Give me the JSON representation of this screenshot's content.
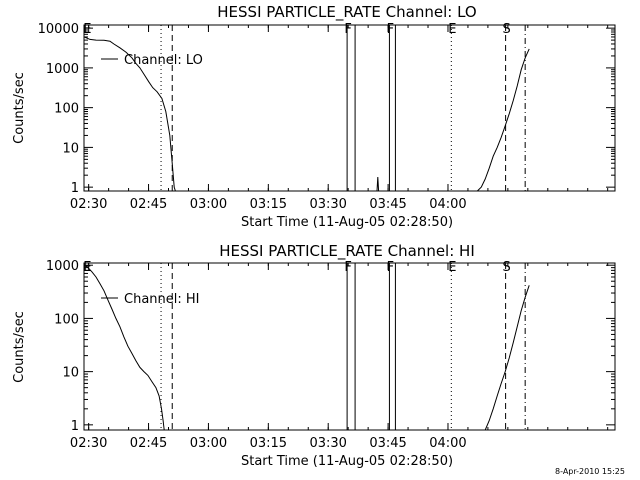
{
  "footer": {
    "date_stamp": "8-Apr-2010 15:25"
  },
  "chart_data": [
    {
      "type": "line",
      "title": "HESSI PARTICLE_RATE Channel: LO",
      "xlabel": "Start Time (11-Aug-05 02:28:50)",
      "ylabel": "Counts/sec",
      "yscale": "log",
      "xlim_minutes_after_0228_50": [
        0,
        133
      ],
      "ylim": [
        0.8,
        12000
      ],
      "x_tick_labels": [
        "02:30",
        "02:45",
        "03:00",
        "03:15",
        "03:30",
        "03:45",
        "04:00"
      ],
      "y_tick_labels": [
        "1",
        "10",
        "100",
        "1000",
        "10000"
      ],
      "legend": "Channel: LO",
      "legend_placement": "top-left",
      "markers": [
        {
          "label": "E",
          "x": 0.6,
          "style": "none"
        },
        {
          "label": "F",
          "x": 65.9,
          "style": "solid"
        },
        {
          "label": "",
          "x": 67.9,
          "style": "solid"
        },
        {
          "label": "F",
          "x": 76.5,
          "style": "solid"
        },
        {
          "label": "",
          "x": 78.0,
          "style": "solid"
        },
        {
          "label": "E",
          "x": 92.0,
          "style": "dotted"
        },
        {
          "label": "S",
          "x": 105.6,
          "style": "dashed"
        },
        {
          "label": "",
          "x": 110.5,
          "style": "dashdot"
        }
      ],
      "vlines": [
        {
          "x": 19.3,
          "style": "dotted"
        },
        {
          "x": 22.1,
          "style": "dashed"
        }
      ],
      "series": [
        {
          "name": "Channel: LO",
          "segments": [
            [
              [
                0.1,
                6000
              ],
              [
                1.5,
                5200
              ],
              [
                3,
                5000
              ],
              [
                5,
                4950
              ],
              [
                6.5,
                4700
              ],
              [
                7.5,
                4000
              ],
              [
                9,
                3200
              ],
              [
                10.5,
                2500
              ],
              [
                12,
                1800
              ],
              [
                13,
                1300
              ],
              [
                14,
                1000
              ],
              [
                15,
                700
              ],
              [
                16.2,
                450
              ],
              [
                17.2,
                320
              ],
              [
                18.3,
                250
              ],
              [
                19.5,
                170
              ],
              [
                20.5,
                80
              ],
              [
                21.5,
                20
              ],
              [
                22.1,
                4
              ],
              [
                22.6,
                1
              ],
              [
                22.9,
                0.8
              ]
            ],
            [
              [
                73.4,
                0.8
              ],
              [
                73.6,
                1.8
              ],
              [
                73.8,
                0.8
              ]
            ],
            [
              [
                98.5,
                0.8
              ],
              [
                99.5,
                1.0
              ],
              [
                100.5,
                1.6
              ],
              [
                101.5,
                3
              ],
              [
                102.5,
                6
              ],
              [
                103.5,
                10
              ],
              [
                104.5,
                18
              ],
              [
                105.5,
                35
              ],
              [
                106.5,
                70
              ],
              [
                107.5,
                150
              ],
              [
                108.5,
                350
              ],
              [
                109.5,
                900
              ],
              [
                110.5,
                1800
              ],
              [
                111.5,
                3000
              ]
            ]
          ]
        }
      ]
    },
    {
      "type": "line",
      "title": "HESSI PARTICLE_RATE Channel: HI",
      "xlabel": "Start Time (11-Aug-05 02:28:50)",
      "ylabel": "Counts/sec",
      "yscale": "log",
      "xlim_minutes_after_0228_50": [
        0,
        133
      ],
      "ylim": [
        0.8,
        1100
      ],
      "x_tick_labels": [
        "02:30",
        "02:45",
        "03:00",
        "03:15",
        "03:30",
        "03:45",
        "04:00"
      ],
      "y_tick_labels": [
        "1",
        "10",
        "100",
        "1000"
      ],
      "legend": "Channel: HI",
      "legend_placement": "top-left",
      "markers": [
        {
          "label": "E",
          "x": 0.6,
          "style": "none"
        },
        {
          "label": "F",
          "x": 65.9,
          "style": "solid"
        },
        {
          "label": "",
          "x": 67.9,
          "style": "solid"
        },
        {
          "label": "F",
          "x": 76.5,
          "style": "solid"
        },
        {
          "label": "",
          "x": 78.0,
          "style": "solid"
        },
        {
          "label": "E",
          "x": 92.0,
          "style": "dotted"
        },
        {
          "label": "S",
          "x": 105.6,
          "style": "dashed"
        },
        {
          "label": "",
          "x": 110.5,
          "style": "dashdot"
        }
      ],
      "vlines": [
        {
          "x": 19.3,
          "style": "dotted"
        },
        {
          "x": 22.1,
          "style": "dashed"
        }
      ],
      "series": [
        {
          "name": "Channel: HI",
          "segments": [
            [
              [
                0.1,
                1000
              ],
              [
                1,
                900
              ],
              [
                2,
                750
              ],
              [
                3,
                600
              ],
              [
                4,
                450
              ],
              [
                5,
                330
              ],
              [
                6,
                220
              ],
              [
                7,
                150
              ],
              [
                8,
                100
              ],
              [
                9,
                70
              ],
              [
                10,
                45
              ],
              [
                11,
                30
              ],
              [
                12,
                22
              ],
              [
                13,
                16
              ],
              [
                14,
                12
              ],
              [
                15,
                10
              ],
              [
                16,
                8.5
              ],
              [
                17,
                6.5
              ],
              [
                18,
                5
              ],
              [
                18.8,
                3.5
              ],
              [
                19.4,
                2
              ],
              [
                19.8,
                1.2
              ],
              [
                20.1,
                0.8
              ]
            ],
            [
              [
                100.5,
                0.8
              ],
              [
                101.5,
                1.2
              ],
              [
                102.5,
                2
              ],
              [
                103.5,
                3.5
              ],
              [
                104.5,
                6
              ],
              [
                105.5,
                10
              ],
              [
                106.5,
                18
              ],
              [
                107.5,
                35
              ],
              [
                108.5,
                70
              ],
              [
                109.5,
                140
              ],
              [
                110.5,
                250
              ],
              [
                111.5,
                420
              ]
            ]
          ]
        }
      ]
    }
  ]
}
